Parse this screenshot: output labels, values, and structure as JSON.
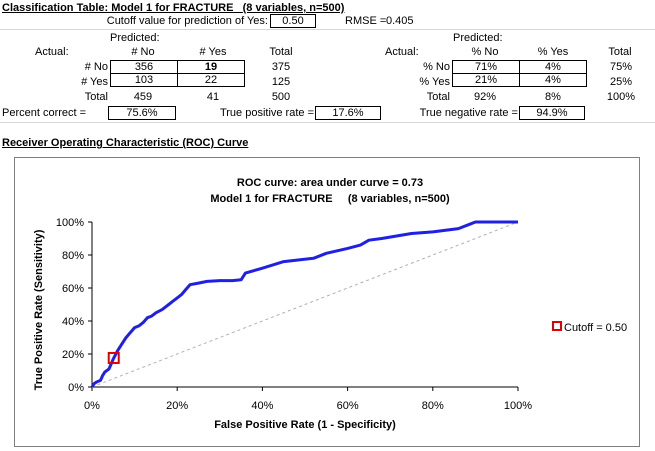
{
  "classification": {
    "title": "Classification Table: Model 1 for FRACTURE",
    "title_suffix": "(8 variables, n=500)",
    "cutoff_label": "Cutoff value for prediction of Yes:",
    "cutoff_value": "0.50",
    "rmse_label": "RMSE =",
    "rmse_value": "0.405",
    "predicted_label": "Predicted:",
    "actual_label": "Actual:",
    "counts": {
      "headers": [
        "# No",
        "# Yes",
        "Total"
      ],
      "rows": [
        {
          "label": "# No",
          "values": [
            "356",
            "19",
            "375"
          ]
        },
        {
          "label": "# Yes",
          "values": [
            "103",
            "22",
            "125"
          ]
        },
        {
          "label": "Total",
          "values": [
            "459",
            "41",
            "500"
          ]
        }
      ]
    },
    "percents": {
      "headers": [
        "% No",
        "% Yes",
        "Total"
      ],
      "rows": [
        {
          "label": "% No",
          "values": [
            "71%",
            "4%",
            "75%"
          ]
        },
        {
          "label": "% Yes",
          "values": [
            "21%",
            "4%",
            "25%"
          ]
        },
        {
          "label": "Total",
          "values": [
            "92%",
            "8%",
            "100%"
          ]
        }
      ]
    },
    "percent_correct_label": "Percent correct =",
    "percent_correct_value": "75.6%",
    "tpr_label": "True positive rate =",
    "tpr_value": "17.6%",
    "tnr_label": "True negative rate =",
    "tnr_value": "94.9%"
  },
  "roc_section_title": "Receiver Operating Characteristic (ROC) Curve",
  "chart_data": {
    "type": "line",
    "title": "ROC curve:  area under curve = 0.73",
    "subtitle": "Model 1 for FRACTURE     (8 variables, n=500)",
    "xlabel": "False Positive Rate (1 - Specificity)",
    "ylabel": "True Positive Rate (Sensitivity)",
    "xlim": [
      0,
      1
    ],
    "ylim": [
      0,
      1
    ],
    "x_ticks": [
      "0%",
      "20%",
      "40%",
      "60%",
      "80%",
      "100%"
    ],
    "y_ticks": [
      "0%",
      "20%",
      "40%",
      "60%",
      "80%",
      "100%"
    ],
    "grid": false,
    "legend_position": "right",
    "colors": {
      "curve": "#1f1fe6",
      "diagonal": "#b0b0b0",
      "cutoff": "#e00000"
    },
    "series": [
      {
        "values": [
          [
            0.0,
            0.0
          ],
          [
            0.005,
            0.02
          ],
          [
            0.01,
            0.03
          ],
          [
            0.02,
            0.04
          ],
          [
            0.025,
            0.07
          ],
          [
            0.03,
            0.09
          ],
          [
            0.04,
            0.11
          ],
          [
            0.045,
            0.14
          ],
          [
            0.05,
            0.17
          ],
          [
            0.06,
            0.22
          ],
          [
            0.07,
            0.26
          ],
          [
            0.08,
            0.3
          ],
          [
            0.09,
            0.33
          ],
          [
            0.1,
            0.36
          ],
          [
            0.11,
            0.37
          ],
          [
            0.12,
            0.39
          ],
          [
            0.13,
            0.42
          ],
          [
            0.14,
            0.43
          ],
          [
            0.15,
            0.45
          ],
          [
            0.165,
            0.47
          ],
          [
            0.18,
            0.5
          ],
          [
            0.19,
            0.52
          ],
          [
            0.2,
            0.54
          ],
          [
            0.21,
            0.56
          ],
          [
            0.22,
            0.59
          ],
          [
            0.23,
            0.62
          ],
          [
            0.25,
            0.63
          ],
          [
            0.27,
            0.64
          ],
          [
            0.3,
            0.645
          ],
          [
            0.33,
            0.645
          ],
          [
            0.35,
            0.65
          ],
          [
            0.36,
            0.69
          ],
          [
            0.4,
            0.72
          ],
          [
            0.45,
            0.76
          ],
          [
            0.52,
            0.78
          ],
          [
            0.55,
            0.81
          ],
          [
            0.6,
            0.84
          ],
          [
            0.63,
            0.86
          ],
          [
            0.65,
            0.89
          ],
          [
            0.68,
            0.9
          ],
          [
            0.75,
            0.93
          ],
          [
            0.8,
            0.94
          ],
          [
            0.86,
            0.96
          ],
          [
            0.89,
            0.99
          ],
          [
            0.9,
            1.0
          ],
          [
            1.0,
            1.0
          ]
        ]
      },
      {
        "values": [
          [
            0,
            0
          ],
          [
            1,
            1
          ]
        ]
      }
    ],
    "cutoff_point": {
      "label": "Cutoff = 0.50",
      "x": 0.051,
      "y": 0.176
    }
  }
}
